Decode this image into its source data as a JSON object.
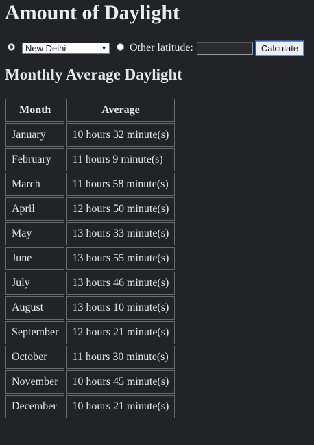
{
  "page": {
    "title": "Amount of Daylight",
    "subtitle": "Monthly Average Daylight"
  },
  "controls": {
    "city_radio_checked": true,
    "city_selected": "New Delhi",
    "other_radio_checked": false,
    "other_label": "Other latitude:",
    "latitude_value": "",
    "calculate_label": "Calculate"
  },
  "table": {
    "headers": [
      "Month",
      "Average"
    ],
    "rows": [
      {
        "month": "January",
        "average": "10 hours 32 minute(s)"
      },
      {
        "month": "February",
        "average": "11 hours 9 minute(s)"
      },
      {
        "month": "March",
        "average": "11 hours 58 minute(s)"
      },
      {
        "month": "April",
        "average": "12 hours 50 minute(s)"
      },
      {
        "month": "May",
        "average": "13 hours 33 minute(s)"
      },
      {
        "month": "June",
        "average": "13 hours 55 minute(s)"
      },
      {
        "month": "July",
        "average": "13 hours 46 minute(s)"
      },
      {
        "month": "August",
        "average": "13 hours 10 minute(s)"
      },
      {
        "month": "September",
        "average": "12 hours 21 minute(s)"
      },
      {
        "month": "October",
        "average": "11 hours 30 minute(s)"
      },
      {
        "month": "November",
        "average": "10 hours 45 minute(s)"
      },
      {
        "month": "December",
        "average": "10 hours 21 minute(s)"
      }
    ]
  }
}
